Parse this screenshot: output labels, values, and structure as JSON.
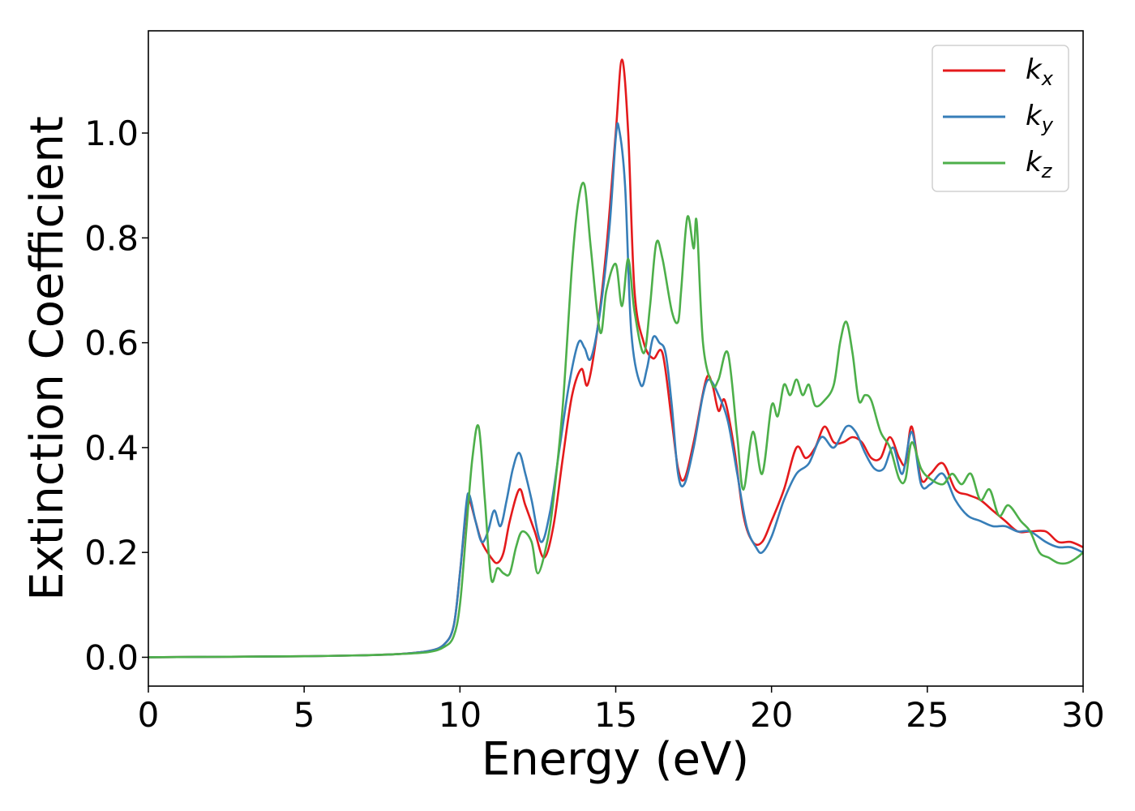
{
  "chart_data": {
    "type": "line",
    "title": "",
    "xlabel": "Energy (eV)",
    "ylabel": "Extinction Coefficient",
    "xlim": [
      0,
      30
    ],
    "ylim": [
      -0.055,
      1.195
    ],
    "xticks": [
      0,
      5,
      10,
      15,
      20,
      25,
      30
    ],
    "yticks": [
      "0.0",
      "0.2",
      "0.4",
      "0.6",
      "0.8",
      "1.0"
    ],
    "grid": false,
    "legend_position": "top-right",
    "series": [
      {
        "name": "k_x",
        "legend_base": "k",
        "legend_sub": "x",
        "color": "#e41a1c",
        "x": [
          0,
          5,
          7,
          8,
          9,
          9.5,
          9.8,
          10.0,
          10.2,
          10.3,
          10.5,
          10.7,
          11.0,
          11.2,
          11.4,
          11.6,
          11.9,
          12.1,
          12.4,
          12.7,
          13.0,
          13.3,
          13.6,
          13.9,
          14.1,
          14.4,
          14.7,
          15.0,
          15.2,
          15.4,
          15.6,
          15.9,
          16.2,
          16.5,
          16.8,
          17.0,
          17.2,
          17.5,
          17.9,
          18.1,
          18.3,
          18.5,
          18.8,
          19.1,
          19.4,
          19.7,
          20.0,
          20.4,
          20.8,
          21.1,
          21.4,
          21.7,
          22.0,
          22.3,
          22.6,
          22.9,
          23.2,
          23.5,
          23.8,
          24.1,
          24.3,
          24.5,
          24.8,
          25.1,
          25.5,
          25.9,
          26.3,
          26.7,
          27.1,
          27.5,
          27.9,
          28.3,
          28.8,
          29.2,
          29.6,
          30.0
        ],
        "y": [
          0.0,
          0.002,
          0.004,
          0.006,
          0.012,
          0.025,
          0.06,
          0.16,
          0.28,
          0.3,
          0.26,
          0.22,
          0.19,
          0.18,
          0.2,
          0.26,
          0.32,
          0.29,
          0.24,
          0.19,
          0.25,
          0.38,
          0.5,
          0.55,
          0.52,
          0.62,
          0.78,
          1.0,
          1.14,
          1.0,
          0.7,
          0.6,
          0.57,
          0.58,
          0.45,
          0.36,
          0.34,
          0.41,
          0.53,
          0.52,
          0.47,
          0.49,
          0.4,
          0.27,
          0.22,
          0.22,
          0.26,
          0.32,
          0.4,
          0.38,
          0.4,
          0.44,
          0.41,
          0.41,
          0.42,
          0.41,
          0.38,
          0.38,
          0.42,
          0.38,
          0.37,
          0.44,
          0.34,
          0.35,
          0.37,
          0.32,
          0.31,
          0.3,
          0.28,
          0.26,
          0.24,
          0.24,
          0.24,
          0.22,
          0.22,
          0.21
        ]
      },
      {
        "name": "k_y",
        "legend_base": "k",
        "legend_sub": "y",
        "color": "#377eb8",
        "x": [
          0,
          5,
          7,
          8,
          9,
          9.5,
          9.8,
          10.0,
          10.2,
          10.3,
          10.5,
          10.7,
          10.9,
          11.1,
          11.3,
          11.5,
          11.7,
          11.9,
          12.1,
          12.3,
          12.6,
          12.9,
          13.2,
          13.5,
          13.8,
          14.0,
          14.2,
          14.5,
          14.8,
          15.0,
          15.1,
          15.3,
          15.5,
          15.8,
          16.0,
          16.2,
          16.4,
          16.6,
          16.8,
          17.0,
          17.2,
          17.5,
          17.8,
          18.0,
          18.3,
          18.6,
          18.9,
          19.2,
          19.5,
          19.7,
          20.0,
          20.4,
          20.8,
          21.2,
          21.6,
          22.0,
          22.4,
          22.7,
          23.0,
          23.3,
          23.6,
          23.9,
          24.2,
          24.5,
          24.8,
          25.1,
          25.5,
          25.9,
          26.3,
          26.7,
          27.1,
          27.5,
          27.9,
          28.3,
          28.8,
          29.2,
          29.6,
          30.0
        ],
        "y": [
          0.0,
          0.002,
          0.004,
          0.006,
          0.012,
          0.025,
          0.06,
          0.16,
          0.29,
          0.31,
          0.26,
          0.22,
          0.24,
          0.28,
          0.25,
          0.3,
          0.36,
          0.39,
          0.35,
          0.3,
          0.22,
          0.28,
          0.4,
          0.52,
          0.6,
          0.59,
          0.57,
          0.66,
          0.82,
          0.99,
          1.01,
          0.9,
          0.62,
          0.52,
          0.55,
          0.61,
          0.6,
          0.58,
          0.48,
          0.35,
          0.33,
          0.4,
          0.5,
          0.53,
          0.5,
          0.45,
          0.35,
          0.25,
          0.21,
          0.2,
          0.23,
          0.3,
          0.35,
          0.37,
          0.42,
          0.4,
          0.44,
          0.43,
          0.39,
          0.36,
          0.36,
          0.4,
          0.35,
          0.43,
          0.33,
          0.33,
          0.35,
          0.3,
          0.27,
          0.26,
          0.25,
          0.25,
          0.24,
          0.24,
          0.22,
          0.21,
          0.21,
          0.2
        ]
      },
      {
        "name": "k_z",
        "legend_base": "k",
        "legend_sub": "z",
        "color": "#4daf4a",
        "x": [
          0,
          5,
          7,
          8,
          9,
          9.5,
          9.8,
          10.0,
          10.2,
          10.4,
          10.6,
          10.8,
          11.0,
          11.2,
          11.4,
          11.6,
          11.8,
          12.0,
          12.3,
          12.5,
          12.8,
          13.0,
          13.3,
          13.6,
          13.8,
          14.0,
          14.2,
          14.5,
          14.7,
          15.0,
          15.2,
          15.4,
          15.6,
          15.9,
          16.1,
          16.3,
          16.5,
          16.8,
          17.0,
          17.1,
          17.3,
          17.5,
          17.6,
          17.8,
          18.1,
          18.3,
          18.6,
          18.9,
          19.1,
          19.4,
          19.7,
          20.0,
          20.2,
          20.4,
          20.6,
          20.8,
          21.0,
          21.2,
          21.4,
          21.7,
          22.0,
          22.2,
          22.4,
          22.6,
          22.8,
          23.0,
          23.2,
          23.5,
          23.8,
          24.1,
          24.3,
          24.5,
          24.8,
          25.1,
          25.5,
          25.8,
          26.1,
          26.4,
          26.7,
          27.0,
          27.3,
          27.6,
          28.0,
          28.3,
          28.6,
          28.9,
          29.2,
          29.5,
          29.8,
          30.0
        ],
        "y": [
          0.0,
          0.002,
          0.004,
          0.006,
          0.01,
          0.02,
          0.04,
          0.1,
          0.24,
          0.38,
          0.44,
          0.3,
          0.15,
          0.17,
          0.16,
          0.16,
          0.21,
          0.24,
          0.22,
          0.16,
          0.22,
          0.3,
          0.48,
          0.75,
          0.87,
          0.9,
          0.78,
          0.62,
          0.7,
          0.75,
          0.67,
          0.76,
          0.66,
          0.58,
          0.67,
          0.79,
          0.76,
          0.66,
          0.64,
          0.7,
          0.84,
          0.78,
          0.83,
          0.6,
          0.52,
          0.53,
          0.58,
          0.42,
          0.32,
          0.43,
          0.35,
          0.48,
          0.46,
          0.52,
          0.5,
          0.53,
          0.5,
          0.52,
          0.48,
          0.49,
          0.52,
          0.6,
          0.64,
          0.58,
          0.49,
          0.5,
          0.49,
          0.43,
          0.4,
          0.34,
          0.34,
          0.41,
          0.36,
          0.34,
          0.33,
          0.35,
          0.33,
          0.35,
          0.3,
          0.32,
          0.27,
          0.29,
          0.26,
          0.24,
          0.2,
          0.19,
          0.18,
          0.18,
          0.19,
          0.2
        ]
      }
    ]
  }
}
